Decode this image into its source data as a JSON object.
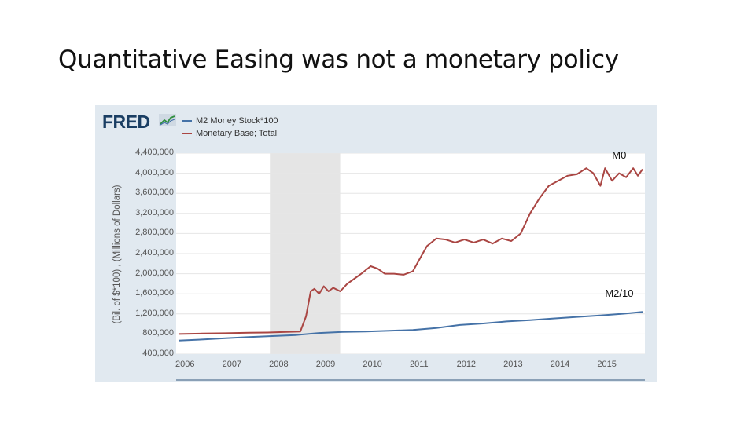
{
  "slide": {
    "title": "Quantitative Easing was not a monetary policy"
  },
  "colors": {
    "panel_bg": "#e1e9f0",
    "m2_line": "#4572a7",
    "base_line": "#aa4643",
    "recession_band": "#e5e5e5",
    "fred_blue": "#1a3e63"
  },
  "chart_data": {
    "type": "line",
    "source_logo": "FRED",
    "ylabel": "(Bil. of $*100) , (Millions of Dollars)",
    "xlabel": "",
    "ylim": [
      400000,
      4400000
    ],
    "xlim": [
      2005.95,
      2015.95
    ],
    "y_ticks": [
      "4,400,000",
      "4,000,000",
      "3,600,000",
      "3,200,000",
      "2,800,000",
      "2,400,000",
      "2,000,000",
      "1,600,000",
      "1,200,000",
      "800,000",
      "400,000"
    ],
    "x_ticks": [
      "2006",
      "2007",
      "2008",
      "2009",
      "2010",
      "2011",
      "2012",
      "2013",
      "2014",
      "2015"
    ],
    "grid": true,
    "legend_placement": "top-left",
    "recession": {
      "start": 2007.95,
      "end": 2009.45
    },
    "series": [
      {
        "name": "M2 Money Stock*100",
        "x": [
          2006.0,
          2006.5,
          2007.0,
          2007.5,
          2008.0,
          2008.5,
          2009.0,
          2009.5,
          2010.0,
          2010.5,
          2011.0,
          2011.5,
          2012.0,
          2012.5,
          2013.0,
          2013.5,
          2014.0,
          2014.5,
          2015.0,
          2015.5,
          2015.9
        ],
        "values": [
          670000,
          690000,
          715000,
          740000,
          760000,
          780000,
          820000,
          840000,
          850000,
          865000,
          880000,
          920000,
          980000,
          1010000,
          1050000,
          1075000,
          1110000,
          1140000,
          1170000,
          1205000,
          1240000
        ]
      },
      {
        "name": "Monetary Base; Total",
        "x": [
          2006.0,
          2006.5,
          2007.0,
          2007.5,
          2007.9,
          2008.3,
          2008.6,
          2008.72,
          2008.82,
          2008.9,
          2009.0,
          2009.1,
          2009.2,
          2009.3,
          2009.45,
          2009.6,
          2009.75,
          2009.9,
          2010.1,
          2010.25,
          2010.4,
          2010.6,
          2010.8,
          2011.0,
          2011.15,
          2011.3,
          2011.5,
          2011.7,
          2011.9,
          2012.1,
          2012.3,
          2012.5,
          2012.7,
          2012.9,
          2013.1,
          2013.3,
          2013.5,
          2013.7,
          2013.9,
          2014.1,
          2014.3,
          2014.5,
          2014.7,
          2014.85,
          2015.0,
          2015.1,
          2015.25,
          2015.4,
          2015.55,
          2015.7,
          2015.8,
          2015.9
        ],
        "values": [
          800000,
          810000,
          815000,
          825000,
          830000,
          840000,
          850000,
          1150000,
          1650000,
          1700000,
          1600000,
          1750000,
          1650000,
          1720000,
          1650000,
          1800000,
          1900000,
          2000000,
          2150000,
          2100000,
          2000000,
          2000000,
          1980000,
          2050000,
          2300000,
          2550000,
          2700000,
          2680000,
          2620000,
          2680000,
          2620000,
          2680000,
          2600000,
          2700000,
          2650000,
          2800000,
          3200000,
          3500000,
          3750000,
          3850000,
          3950000,
          3980000,
          4100000,
          4000000,
          3750000,
          4100000,
          3850000,
          4000000,
          3920000,
          4100000,
          3950000,
          4080000
        ]
      }
    ],
    "annotations": [
      {
        "text": "M0",
        "x": 2015.25,
        "y": 4350000
      },
      {
        "text": "M2/10",
        "x": 2015.1,
        "y": 1600000
      }
    ]
  }
}
